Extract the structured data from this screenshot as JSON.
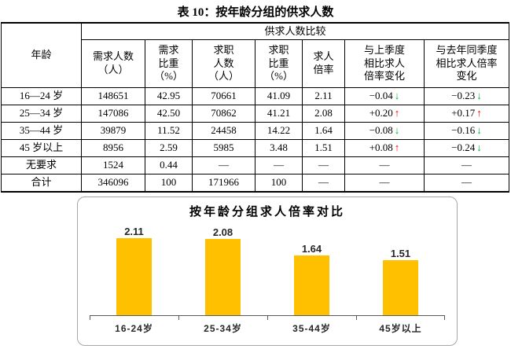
{
  "document": {
    "title": "表 10：按年龄分组的供求人数"
  },
  "table": {
    "top_header": {
      "age_label": "年龄",
      "compare_label": "供求人数比较"
    },
    "columns": [
      "需求人数\n（人）",
      "需求\n比重\n（%）",
      "求职\n人数\n（人）",
      "求职\n比重\n（%）",
      "求人\n倍率",
      "与上季度\n相比求人\n倍率变化",
      "与去年同季度\n相比求人倍率\n变化"
    ],
    "rows": [
      {
        "age": "16—24 岁",
        "values": [
          "148651",
          "42.95",
          "70661",
          "41.09",
          "2.11"
        ],
        "changes": [
          {
            "text": "−0.04",
            "arrow": "↓",
            "trend": "down"
          },
          {
            "text": "−0.23",
            "arrow": "↓",
            "trend": "down"
          }
        ]
      },
      {
        "age": "25—34 岁",
        "values": [
          "147086",
          "42.50",
          "70862",
          "41.21",
          "2.08"
        ],
        "changes": [
          {
            "text": "+0.20",
            "arrow": "↑",
            "trend": "up"
          },
          {
            "text": "+0.17",
            "arrow": "↑",
            "trend": "up"
          }
        ]
      },
      {
        "age": "35—44 岁",
        "values": [
          "39879",
          "11.52",
          "24458",
          "14.22",
          "1.64"
        ],
        "changes": [
          {
            "text": "−0.08",
            "arrow": "↓",
            "trend": "down"
          },
          {
            "text": "−0.16",
            "arrow": "↓",
            "trend": "down"
          }
        ]
      },
      {
        "age": "45 岁以上",
        "values": [
          "8956",
          "2.59",
          "5985",
          "3.48",
          "1.51"
        ],
        "changes": [
          {
            "text": "+0.08",
            "arrow": "↑",
            "trend": "up"
          },
          {
            "text": "−0.24",
            "arrow": "↓",
            "trend": "down"
          }
        ]
      },
      {
        "age": "无要求",
        "values": [
          "1524",
          "0.44",
          "—",
          "—",
          "—"
        ],
        "changes": [
          {
            "text": "—",
            "arrow": "",
            "trend": "none"
          },
          {
            "text": "—",
            "arrow": "",
            "trend": "none"
          }
        ]
      },
      {
        "age": "合计",
        "values": [
          "346096",
          "100",
          "171966",
          "100",
          "—"
        ],
        "changes": [
          {
            "text": "—",
            "arrow": "",
            "trend": "none"
          },
          {
            "text": "—",
            "arrow": "",
            "trend": "none"
          }
        ]
      }
    ]
  },
  "chart_data": {
    "type": "bar",
    "title": "按年龄分组求人倍率对比",
    "categories": [
      "16-24岁",
      "25-34岁",
      "35-44岁",
      "45岁以上"
    ],
    "values": [
      2.11,
      2.08,
      1.64,
      1.51
    ],
    "value_labels": [
      "2.11",
      "2.08",
      "1.64",
      "1.51"
    ],
    "xlabel": "",
    "ylabel": "",
    "ylim": [
      0,
      2.3
    ],
    "grid": false,
    "legend": "none",
    "bar_color": "#FFC000"
  },
  "colors": {
    "trend_up": "#FF0000",
    "trend_down": "#00B050",
    "bar": "#FFC000",
    "table_border": "#000000",
    "chart_border": "#A6A6A6"
  }
}
